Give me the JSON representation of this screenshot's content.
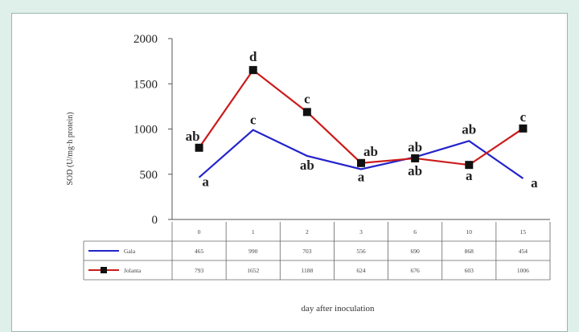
{
  "chart_data": {
    "type": "line",
    "ylabel": "SOD (U/mg·h protein)",
    "xlabel": "day after inoculation",
    "ylim": [
      0,
      2000
    ],
    "yticks": [
      0,
      500,
      1000,
      1500,
      2000
    ],
    "categories": [
      "0",
      "1",
      "2",
      "3",
      "6",
      "10",
      "15"
    ],
    "series": [
      {
        "name": "Gala",
        "color": "#2323cc",
        "marker": "none",
        "values": [
          465,
          990,
          703,
          556,
          690,
          868,
          454
        ],
        "labels": [
          "465",
          "990",
          "703",
          "556",
          "690",
          "868",
          "454"
        ],
        "annotations": [
          "a",
          "c",
          "ab",
          "a",
          "ab",
          "ab",
          "a"
        ]
      },
      {
        "name": "Jolanta",
        "color": "#cc1a1a",
        "marker": "square",
        "values": [
          793,
          1652,
          1188,
          624,
          676,
          603,
          1006
        ],
        "labels": [
          "793",
          "1652",
          "1188",
          "624",
          "676",
          "603",
          "1006"
        ],
        "annotations": [
          "ab",
          "d",
          "c",
          "ab",
          "ab",
          "a",
          "c"
        ]
      }
    ]
  }
}
